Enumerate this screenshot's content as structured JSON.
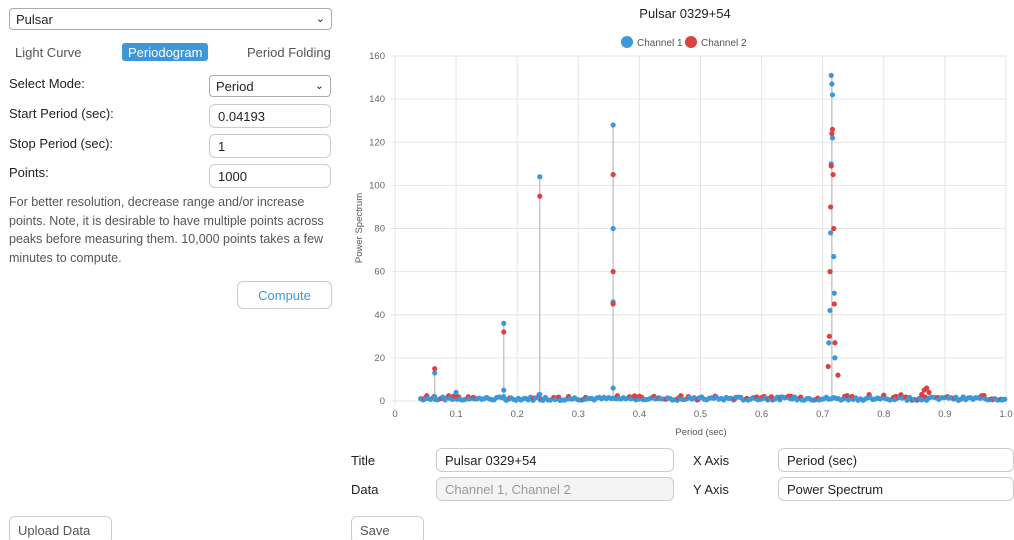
{
  "dataset_select": {
    "value": "Pulsar"
  },
  "tabs": [
    {
      "label": "Light Curve",
      "active": false
    },
    {
      "label": "Periodogram",
      "active": true
    },
    {
      "label": "Period Folding",
      "active": false
    }
  ],
  "form": {
    "mode_label": "Select Mode:",
    "mode_value": "Period",
    "start_label": "Start Period (sec):",
    "start_value": "0.04193",
    "stop_label": "Stop Period (sec):",
    "stop_value": "1",
    "points_label": "Points:",
    "points_value": "1000",
    "help_text": "For better resolution, decrease range and/or increase points. Note, it is desirable to have multiple points across peaks before measuring them. 10,000 points takes a few minutes to compute.",
    "compute_label": "Compute"
  },
  "graph_settings": {
    "title_label": "Title",
    "title_value": "Pulsar 0329+54",
    "data_label": "Data",
    "data_placeholder": "Channel 1, Channel 2",
    "xaxis_label": "X Axis",
    "xaxis_value": "Period (sec)",
    "yaxis_label": "Y Axis",
    "yaxis_value": "Power Spectrum"
  },
  "buttons": {
    "upload": "Upload Data File",
    "save": "Save Graph"
  },
  "icons": {
    "select_chevron": "chevron-down-icon"
  },
  "colors": {
    "accent": "#3c98d8",
    "channel1": "#3c98d8",
    "channel2": "#d9423f"
  },
  "chart_data": {
    "type": "scatter",
    "title": "Pulsar 0329+54",
    "xlabel": "Period (sec)",
    "ylabel": "Power Spectrum",
    "xlim": [
      0,
      1.0
    ],
    "ylim": [
      0,
      160
    ],
    "xticks": [
      0,
      0.1,
      0.2,
      0.3,
      0.4,
      0.5,
      0.6,
      0.7,
      0.8,
      0.9,
      1.0
    ],
    "yticks": [
      0,
      20,
      40,
      60,
      80,
      100,
      120,
      140,
      160
    ],
    "xtick_labels": [
      "0",
      "0.1",
      "0.2",
      "0.3",
      "0.4",
      "0.5",
      "0.6",
      "0.7",
      "0.8",
      "0.9",
      "1.0"
    ],
    "ytick_labels": [
      "0",
      "20",
      "40",
      "60",
      "80",
      "100",
      "120",
      "140",
      "160"
    ],
    "grid": true,
    "legend_position": "top",
    "series": [
      {
        "name": "Channel 1",
        "color": "#3c98d8",
        "x": [
          0.065,
          0.065,
          0.1,
          0.178,
          0.178,
          0.178,
          0.237,
          0.237,
          0.357,
          0.357,
          0.357,
          0.357,
          0.71,
          0.712,
          0.713,
          0.714,
          0.714,
          0.715,
          0.716,
          0.716,
          0.718,
          0.719,
          0.72
        ],
        "y": [
          13,
          2,
          4,
          36,
          5,
          2,
          104,
          3,
          128,
          80,
          46,
          6,
          27,
          42,
          78,
          110,
          151,
          147,
          142,
          122,
          67,
          50,
          20
        ]
      },
      {
        "name": "Channel 2",
        "color": "#d9423f",
        "x": [
          0.065,
          0.178,
          0.237,
          0.357,
          0.357,
          0.357,
          0.709,
          0.711,
          0.712,
          0.713,
          0.714,
          0.715,
          0.716,
          0.717,
          0.718,
          0.719,
          0.72,
          0.725,
          0.87
        ],
        "y": [
          15,
          32,
          95,
          105,
          60,
          45,
          16,
          30,
          60,
          90,
          109,
          124,
          126,
          105,
          80,
          45,
          27,
          12,
          6
        ]
      }
    ]
  }
}
